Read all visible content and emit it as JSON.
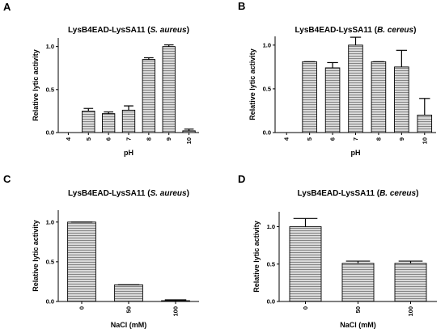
{
  "colors": {
    "bar_fill": "#d9d9d9",
    "hatch": "#7a7a7a",
    "stroke": "#000000"
  },
  "chart_data": [
    {
      "panel": "A",
      "type": "bar",
      "title": "LysB4EAD-LysSA11",
      "title_species": "S. aureus",
      "xlabel": "pH",
      "ylabel": "Relative lytic activity",
      "categories": [
        "4",
        "5",
        "6",
        "7",
        "8",
        "9",
        "10"
      ],
      "values": [
        0.0,
        0.25,
        0.22,
        0.26,
        0.85,
        1.0,
        0.02
      ],
      "errors": [
        0.0,
        0.03,
        0.02,
        0.05,
        0.02,
        0.02,
        0.02
      ],
      "ylim": [
        0,
        1.1
      ],
      "yticks": [
        "0.0",
        "0.5",
        "1.0"
      ],
      "ytick_values": [
        0,
        0.5,
        1.0
      ],
      "grid": false
    },
    {
      "panel": "B",
      "type": "bar",
      "title": "LysB4EAD-LysSA11",
      "title_species": "B. cereus",
      "xlabel": "pH",
      "ylabel": "Relative lytic activity",
      "categories": [
        "4",
        "5",
        "6",
        "7",
        "8",
        "9",
        "10"
      ],
      "values": [
        0.0,
        0.81,
        0.74,
        1.0,
        0.81,
        0.75,
        0.2
      ],
      "errors": [
        0.0,
        0.0,
        0.06,
        0.09,
        0.0,
        0.19,
        0.19
      ],
      "ylim": [
        0,
        1.1
      ],
      "yticks": [
        "0.0",
        "0.5",
        "1.0"
      ],
      "ytick_values": [
        0,
        0.5,
        1.0
      ],
      "grid": false
    },
    {
      "panel": "C",
      "type": "bar",
      "title": "LysB4EAD-LysSA11",
      "title_species": "S. aureus",
      "xlabel": "NaCl (mM)",
      "ylabel": "Relative lytic activity",
      "categories": [
        "0",
        "50",
        "100"
      ],
      "values": [
        1.0,
        0.21,
        0.01
      ],
      "errors": [
        0.0,
        0.0,
        0.01
      ],
      "ylim": [
        0,
        1.15
      ],
      "yticks": [
        "0.0",
        "0.5",
        "1.0"
      ],
      "ytick_values": [
        0,
        0.5,
        1.0
      ],
      "grid": false
    },
    {
      "panel": "D",
      "type": "bar",
      "title": "LysB4EAD-LysSA11",
      "title_species": "B. cereus",
      "xlabel": "NaCl (mM)",
      "ylabel": "Relative lytic activity",
      "categories": [
        "0",
        "50",
        "100"
      ],
      "values": [
        1.0,
        0.51,
        0.51
      ],
      "errors": [
        0.11,
        0.03,
        0.03
      ],
      "ylim": [
        0,
        1.2
      ],
      "yticks": [
        "0.0",
        "0.5",
        "1.0"
      ],
      "ytick_values": [
        0,
        0.5,
        1.0
      ],
      "grid": false
    }
  ]
}
